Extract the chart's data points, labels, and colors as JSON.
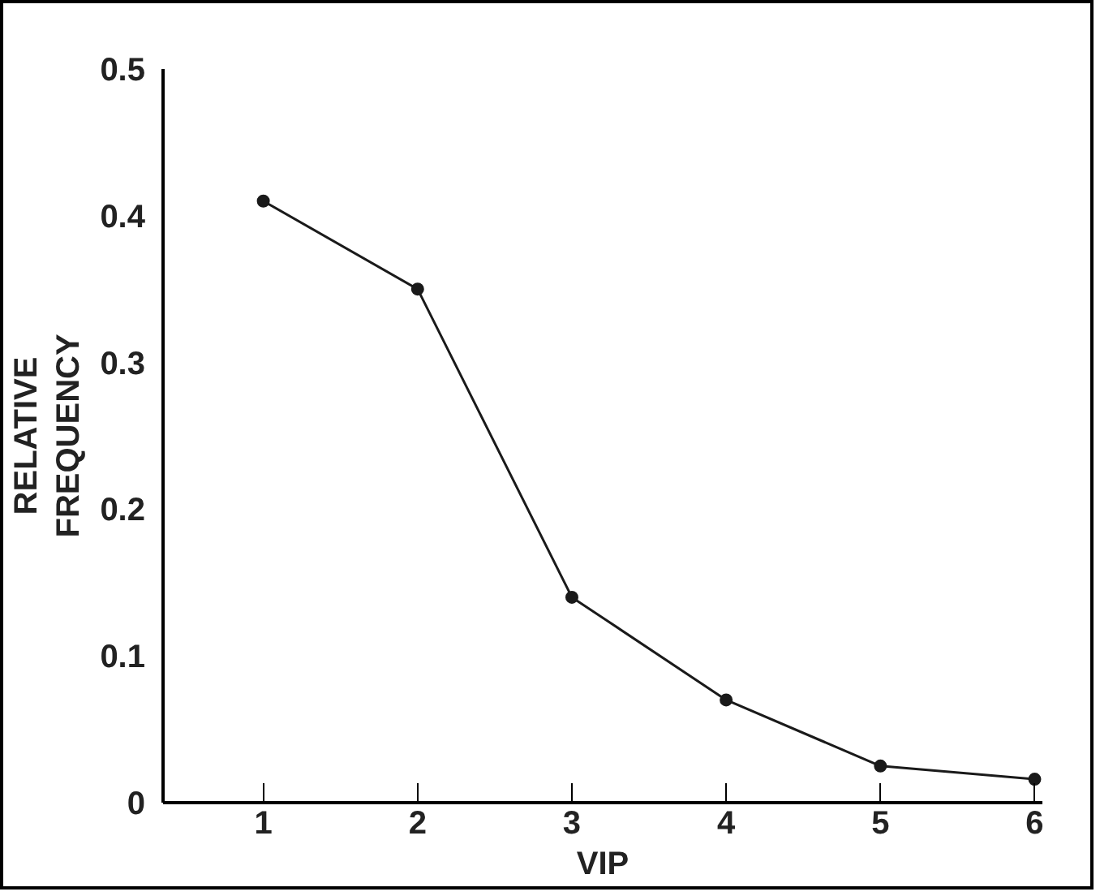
{
  "chart_data": {
    "type": "line",
    "xlabel": "VIP",
    "ylabel": "RELATIVE\nFREQUENCY",
    "x": [
      1,
      2,
      3,
      4,
      5,
      6
    ],
    "series": [
      {
        "color": "#1a1a1a",
        "values": [
          0.41,
          0.35,
          0.14,
          0.07,
          0.025,
          0.016
        ]
      }
    ],
    "xlim": [
      0.35,
      6.05
    ],
    "ylim": [
      0,
      0.5
    ],
    "xticks": [
      1,
      2,
      3,
      4,
      5,
      6
    ],
    "yticks": [
      {
        "value": 0,
        "label": "0"
      },
      0.1,
      0.2,
      0.3,
      0.4,
      0.5
    ],
    "marker": "circle",
    "line_style": "solid"
  }
}
